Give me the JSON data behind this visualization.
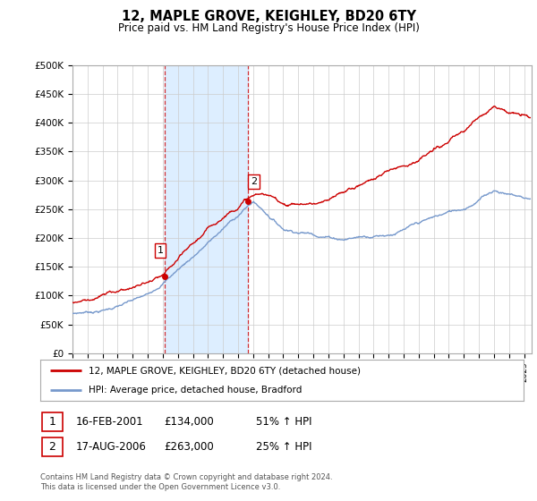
{
  "title": "12, MAPLE GROVE, KEIGHLEY, BD20 6TY",
  "subtitle": "Price paid vs. HM Land Registry's House Price Index (HPI)",
  "ylim": [
    0,
    500000
  ],
  "xlim_start": 1995.0,
  "xlim_end": 2025.5,
  "sale1_x": 2001.12,
  "sale1_y": 134000,
  "sale1_label": "1",
  "sale2_x": 2006.63,
  "sale2_y": 263000,
  "sale2_label": "2",
  "legend_line1": "12, MAPLE GROVE, KEIGHLEY, BD20 6TY (detached house)",
  "legend_line2": "HPI: Average price, detached house, Bradford",
  "table_row1": [
    "1",
    "16-FEB-2001",
    "£134,000",
    "51% ↑ HPI"
  ],
  "table_row2": [
    "2",
    "17-AUG-2006",
    "£263,000",
    "25% ↑ HPI"
  ],
  "footer": "Contains HM Land Registry data © Crown copyright and database right 2024.\nThis data is licensed under the Open Government Licence v3.0.",
  "red_line_color": "#cc0000",
  "blue_line_color": "#7799cc",
  "shade_color": "#ddeeff",
  "grid_color": "#cccccc",
  "bg_color": "#ffffff"
}
